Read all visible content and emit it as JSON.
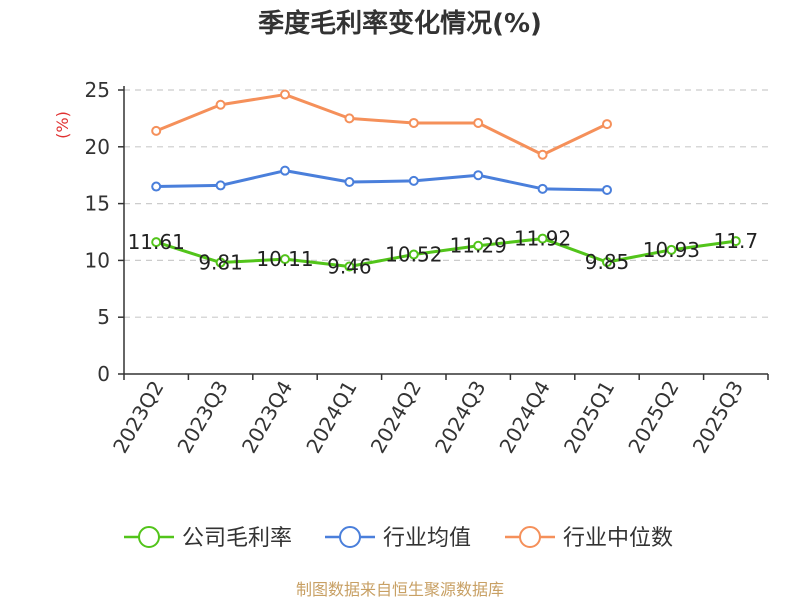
{
  "chart_data": {
    "type": "line",
    "title": "季度毛利率变化情况(%)",
    "ylabel": "(%)",
    "ylim": [
      0,
      25
    ],
    "yticks": [
      0,
      5,
      10,
      15,
      20,
      25
    ],
    "grid": true,
    "legend_position": "bottom",
    "categories": [
      "2023Q2",
      "2023Q3",
      "2023Q4",
      "2024Q1",
      "2024Q2",
      "2024Q3",
      "2024Q4",
      "2025Q1",
      "2025Q2",
      "2025Q3"
    ],
    "series": [
      {
        "name": "公司毛利率",
        "color": "#52c41a",
        "show_labels": true,
        "values": [
          11.61,
          9.81,
          10.11,
          9.46,
          10.52,
          11.29,
          11.92,
          9.85,
          10.93,
          11.7
        ]
      },
      {
        "name": "行业均值",
        "color": "#4a7fdb",
        "show_labels": false,
        "values": [
          16.5,
          16.6,
          17.9,
          16.9,
          17.0,
          17.5,
          16.3,
          16.2,
          null,
          null
        ]
      },
      {
        "name": "行业中位数",
        "color": "#f5905a",
        "show_labels": false,
        "values": [
          21.4,
          23.7,
          24.6,
          22.5,
          22.1,
          22.1,
          19.3,
          22.0,
          null,
          null
        ]
      }
    ],
    "label_strings": [
      "11.61",
      "9.81",
      "10.11",
      "9.46",
      "10.52",
      "11.29",
      "11.92",
      "9.85",
      "10.93",
      "11.7"
    ]
  },
  "colors": {
    "axis": "#333333",
    "grid": "#cccccc",
    "unit": "#e03131",
    "source": "#c8a064"
  },
  "footer": {
    "source": "制图数据来自恒生聚源数据库"
  }
}
